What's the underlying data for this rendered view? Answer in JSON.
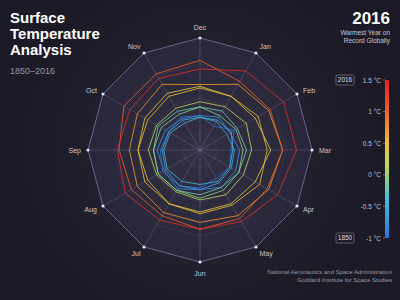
{
  "chart_data": {
    "type": "radar",
    "title": "Surface Temperature Analysis",
    "subtitle": "1850–2016",
    "annotation": {
      "title": "2016",
      "text": "Warmest Year on Record Globally"
    },
    "source": [
      "National Aeronautics and Space Administration",
      "Goddard Institute for Space Studies"
    ],
    "categories": [
      "Jan",
      "Feb",
      "Mar",
      "Apr",
      "May",
      "Jun",
      "Jul",
      "Aug",
      "Sep",
      "Oct",
      "Nov",
      "Dec"
    ],
    "ylim": [
      -1.5,
      1.75
    ],
    "yticks": [
      -1,
      0,
      1
    ],
    "grid": true,
    "tick_labels": "x",
    "series": [
      {
        "color": "#2f6fe0",
        "values": [
          -0.7,
          -0.35,
          -0.6,
          -0.5,
          -0.55,
          -0.4,
          -0.3,
          -0.25,
          -0.35,
          -0.45,
          -0.4,
          -0.5
        ]
      },
      {
        "color": "#3b8fe8",
        "values": [
          -0.4,
          -0.5,
          -0.35,
          -0.3,
          -0.25,
          -0.35,
          -0.2,
          -0.3,
          -0.25,
          -0.35,
          -0.45,
          -0.5
        ]
      },
      {
        "color": "#3fa8e6",
        "values": [
          -0.55,
          -0.6,
          -0.5,
          -0.45,
          -0.4,
          -0.35,
          -0.3,
          -0.35,
          -0.4,
          -0.45,
          -0.5,
          -0.55
        ]
      },
      {
        "color": "#45c0d8",
        "values": [
          -0.5,
          -0.45,
          -0.55,
          -0.5,
          -0.45,
          -0.5,
          -0.45,
          -0.4,
          -0.45,
          -0.5,
          -0.6,
          -0.55
        ]
      },
      {
        "color": "#6fd0b0",
        "values": [
          -0.2,
          -0.25,
          -0.15,
          -0.2,
          -0.25,
          -0.2,
          -0.15,
          -0.1,
          -0.15,
          -0.1,
          -0.2,
          -0.25
        ]
      },
      {
        "color": "#8fd48a",
        "values": [
          -0.35,
          -0.3,
          -0.25,
          -0.2,
          -0.15,
          -0.1,
          -0.15,
          -0.1,
          -0.15,
          -0.2,
          -0.3,
          -0.25
        ]
      },
      {
        "color": "#b8d65a",
        "values": [
          -0.05,
          0.05,
          0,
          -0.05,
          0,
          -0.05,
          -0.1,
          -0.05,
          0,
          -0.05,
          -0.1,
          -0.1
        ]
      },
      {
        "color": "#e0d040",
        "values": [
          0.3,
          0.35,
          0.55,
          0.35,
          0.3,
          0.3,
          0.3,
          0.25,
          0.3,
          0.35,
          0.4,
          0.35
        ]
      },
      {
        "color": "#f0c030",
        "values": [
          0.3,
          0.45,
          0.45,
          0.5,
          0.35,
          0.35,
          0.3,
          0.35,
          0.3,
          0.25,
          0.3,
          0.3
        ]
      },
      {
        "color": "#f39a2a",
        "values": [
          0.7,
          0.8,
          0.9,
          0.8,
          0.7,
          0.6,
          0.6,
          0.6,
          0.55,
          0.6,
          0.7,
          0.4
        ]
      },
      {
        "color": "#f0602a",
        "values": [
          0.8,
          0.85,
          0.9,
          0.75,
          0.8,
          0.8,
          0.7,
          0.8,
          0.85,
          1.05,
          1.05,
          1.1
        ]
      },
      {
        "color": "#e03030",
        "values": [
          1.15,
          1.3,
          1.3,
          1.1,
          0.9,
          0.8,
          0.85,
          1.0,
          0.9,
          0.85,
          0.9,
          0.85
        ]
      }
    ],
    "colorbar": {
      "range": [
        -1,
        1.5
      ],
      "ticks": [
        {
          "value": 1.5,
          "label": "1.5 °C"
        },
        {
          "value": 1,
          "label": "1 °C"
        },
        {
          "value": 0.5,
          "label": "0.5 °C"
        },
        {
          "value": 0,
          "label": "0 °C"
        },
        {
          "value": -0.5,
          "label": "-0.5 °C"
        },
        {
          "value": -1,
          "label": "-1 °C"
        }
      ],
      "year_labels": {
        "start": "1850",
        "end": "2016"
      }
    }
  }
}
